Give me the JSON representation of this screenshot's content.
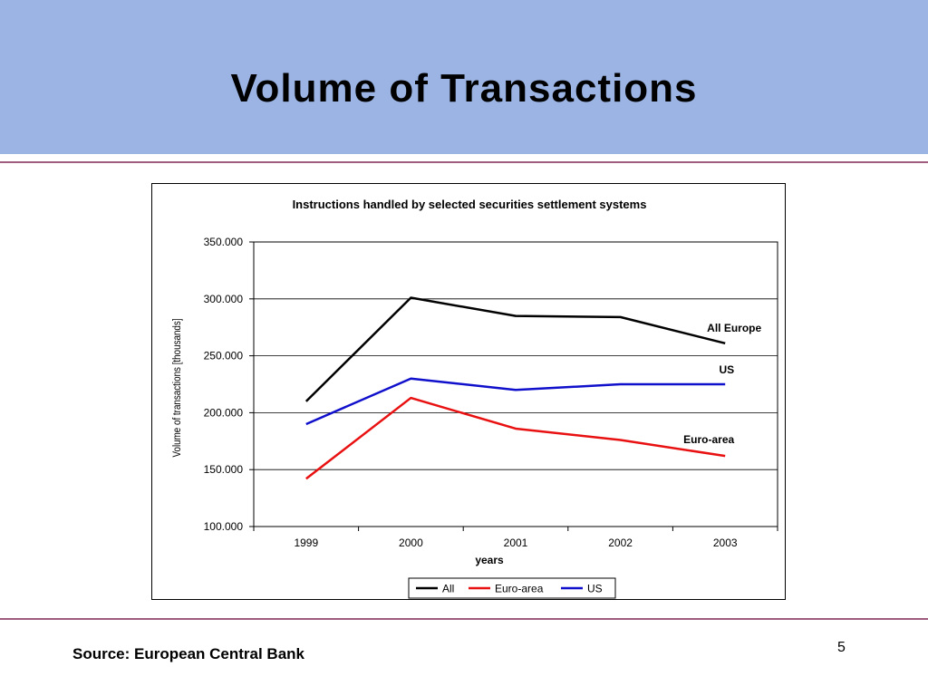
{
  "slide": {
    "title": "Volume of Transactions",
    "source": "Source: European Central Bank",
    "page_number": "5"
  },
  "colors": {
    "header_bg": "#9bb4e4",
    "rule": "#a05c7c"
  },
  "chart_data": {
    "type": "line",
    "title": "Instructions handled by selected securities settlement systems",
    "xlabel": "years",
    "ylabel": "Volume of transactions [thousands]",
    "categories": [
      "1999",
      "2000",
      "2001",
      "2002",
      "2003"
    ],
    "ylim": [
      100000,
      350000
    ],
    "yticks": [
      "100.000",
      "150.000",
      "200.000",
      "250.000",
      "300.000",
      "350.000"
    ],
    "grid": true,
    "legend_position": "bottom",
    "series": [
      {
        "name": "All",
        "color": "#000000",
        "label": "All Europe",
        "values": [
          210000,
          301000,
          285000,
          284000,
          261000
        ]
      },
      {
        "name": "Euro-area",
        "color": "#e81010",
        "label": "Euro-area",
        "values": [
          142000,
          213000,
          186000,
          176000,
          162000
        ]
      },
      {
        "name": "US",
        "color": "#1010cc",
        "label": "US",
        "values": [
          190000,
          230000,
          220000,
          225000,
          225000
        ]
      }
    ]
  }
}
